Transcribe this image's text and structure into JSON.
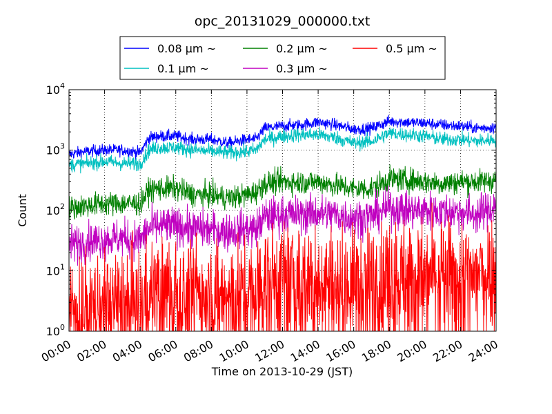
{
  "chart_data": {
    "type": "line",
    "title": "opc_20131029_000000.txt",
    "xlabel": "Time on 2013-10-29 (JST)",
    "ylabel": "Count",
    "yscale": "log",
    "ylim": [
      1,
      10000
    ],
    "xlim": [
      "2013-10-29 00:00",
      "2013-10-30 00:00"
    ],
    "grid": true,
    "legend_position": "top",
    "x_ticks": [
      "00:00",
      "02:00",
      "04:00",
      "06:00",
      "08:00",
      "10:00",
      "12:00",
      "14:00",
      "16:00",
      "18:00",
      "20:00",
      "22:00",
      "24:00"
    ],
    "y_ticks": [
      {
        "base": "10",
        "exp": "0"
      },
      {
        "base": "10",
        "exp": "1"
      },
      {
        "base": "10",
        "exp": "2"
      },
      {
        "base": "10",
        "exp": "3"
      },
      {
        "base": "10",
        "exp": "4"
      }
    ],
    "x": [
      "00:00",
      "01:00",
      "02:00",
      "03:00",
      "04:00",
      "04:30",
      "05:00",
      "06:00",
      "07:00",
      "08:00",
      "09:00",
      "10:00",
      "10:30",
      "11:00",
      "12:00",
      "13:00",
      "14:00",
      "15:00",
      "16:00",
      "17:00",
      "18:00",
      "19:00",
      "20:00",
      "21:00",
      "22:00",
      "23:00",
      "24:00"
    ],
    "series": [
      {
        "name": "0.08 μm ~",
        "color": "#0000ff",
        "noise": 0.05,
        "values": [
          850,
          950,
          1000,
          1000,
          900,
          1600,
          1700,
          1700,
          1500,
          1500,
          1300,
          1500,
          1500,
          2300,
          2500,
          2600,
          2900,
          2600,
          2200,
          2300,
          3000,
          2900,
          2800,
          2600,
          2500,
          2300,
          2400
        ]
      },
      {
        "name": "0.1 μm ~",
        "color": "#00c0c0",
        "noise": 0.06,
        "values": [
          570,
          600,
          650,
          600,
          600,
          1000,
          1100,
          1100,
          1000,
          950,
          900,
          950,
          1000,
          1500,
          1700,
          1800,
          1800,
          1600,
          1300,
          1400,
          1900,
          1800,
          1700,
          1500,
          1500,
          1400,
          1500
        ]
      },
      {
        "name": "0.2 μm ~",
        "color": "#008000",
        "noise": 0.1,
        "values": [
          110,
          120,
          130,
          130,
          130,
          220,
          230,
          230,
          180,
          180,
          160,
          180,
          200,
          280,
          300,
          290,
          300,
          260,
          230,
          230,
          330,
          320,
          300,
          280,
          300,
          300,
          320
        ]
      },
      {
        "name": "0.3 μm ~",
        "color": "#c000c0",
        "noise": 0.16,
        "values": [
          27,
          30,
          33,
          35,
          32,
          50,
          55,
          55,
          50,
          48,
          45,
          50,
          48,
          78,
          85,
          85,
          90,
          85,
          75,
          80,
          110,
          100,
          100,
          95,
          95,
          85,
          120
        ]
      },
      {
        "name": "0.5 μm ~",
        "color": "#ff0000",
        "noise": 0.45,
        "values": [
          2.5,
          2.8,
          3,
          3,
          3,
          4.5,
          5,
          5,
          5,
          5,
          4,
          4,
          4.5,
          7,
          8,
          8,
          8,
          7,
          6,
          7,
          10,
          9,
          8,
          9,
          9,
          9,
          12
        ]
      }
    ]
  }
}
